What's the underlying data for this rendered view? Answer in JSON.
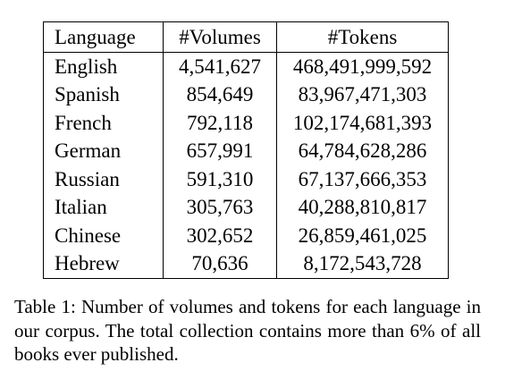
{
  "table": {
    "headers": [
      "Language",
      "#Volumes",
      "#Tokens"
    ],
    "rows": [
      [
        "English",
        "4,541,627",
        "468,491,999,592"
      ],
      [
        "Spanish",
        "854,649",
        "83,967,471,303"
      ],
      [
        "French",
        "792,118",
        "102,174,681,393"
      ],
      [
        "German",
        "657,991",
        "64,784,628,286"
      ],
      [
        "Russian",
        "591,310",
        "67,137,666,353"
      ],
      [
        "Italian",
        "305,763",
        "40,288,810,817"
      ],
      [
        "Chinese",
        "302,652",
        "26,859,461,025"
      ],
      [
        "Hebrew",
        "70,636",
        "8,172,543,728"
      ]
    ]
  },
  "caption": {
    "label": "Table 1:",
    "text": "Number of volumes and tokens for each language in our corpus. The total collection contains more than 6% of all books ever published."
  }
}
